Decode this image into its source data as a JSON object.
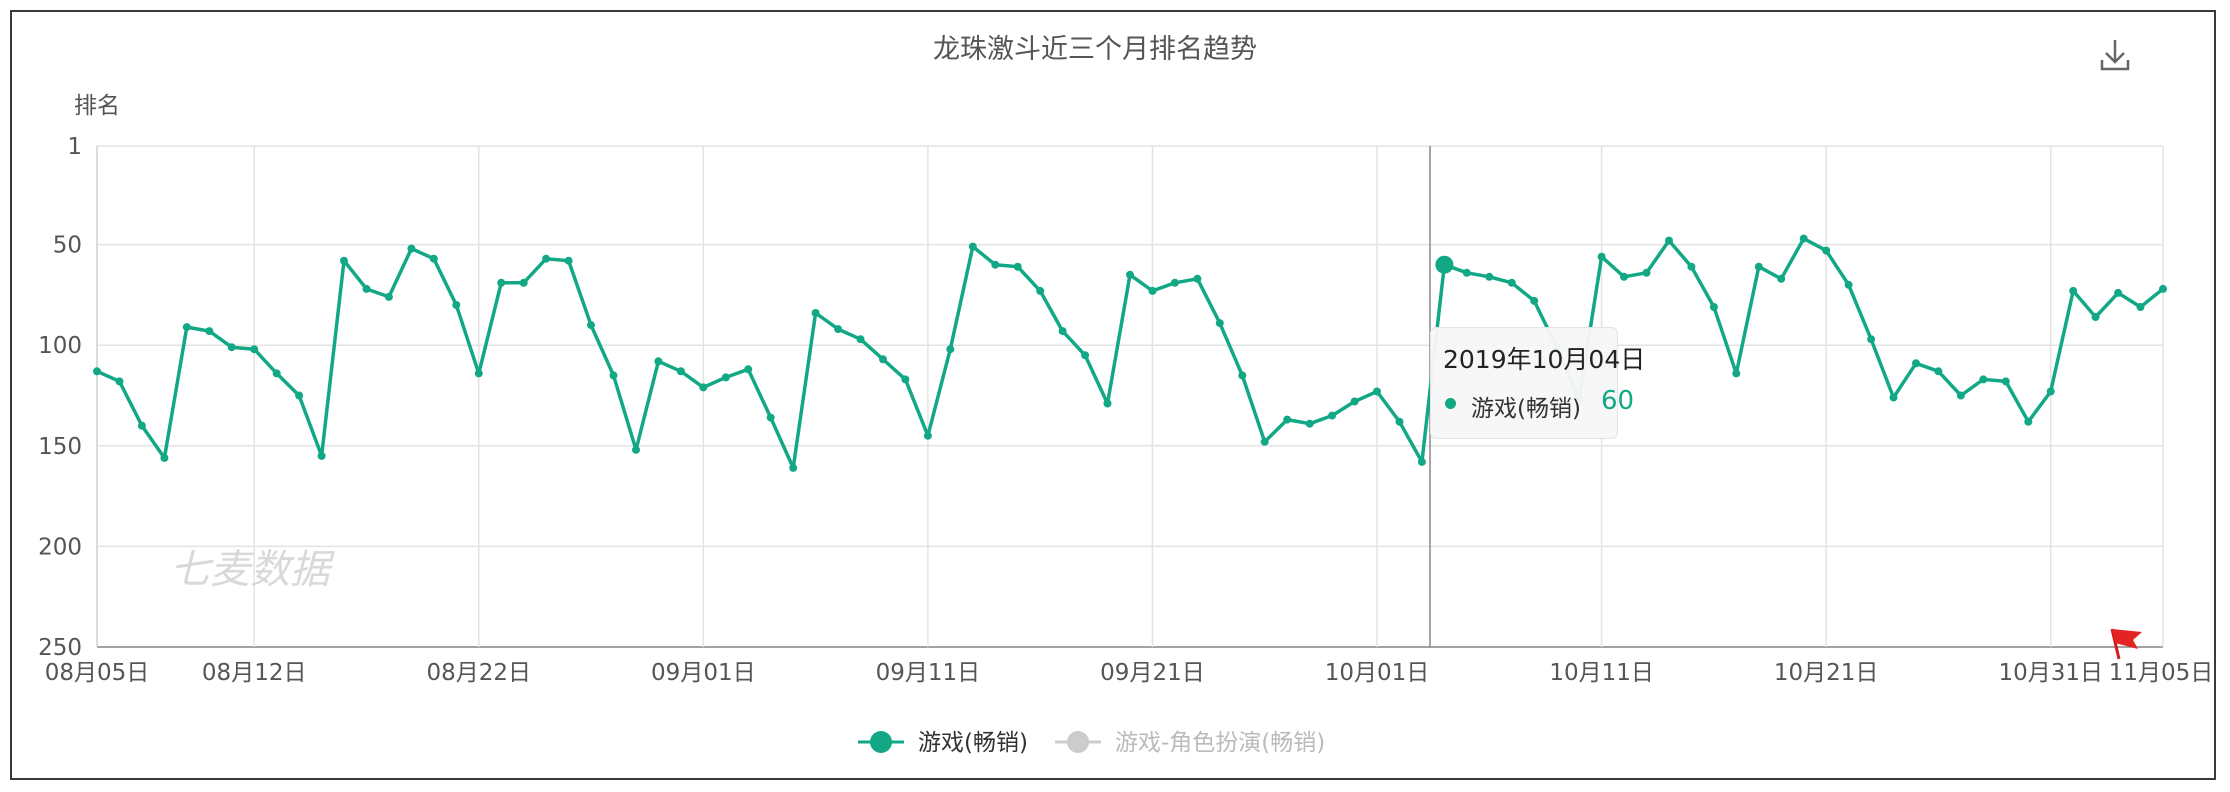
{
  "chart_data": {
    "type": "line",
    "title": "龙珠激斗近三个月排名趋势",
    "ylabel": "排名",
    "y_inverted": true,
    "ylim": [
      1,
      250
    ],
    "y_ticks": [
      "1",
      "50",
      "100",
      "150",
      "200",
      "250"
    ],
    "x_ticks": [
      "08月05日",
      "08月12日",
      "08月22日",
      "09月01日",
      "09月11日",
      "09月21日",
      "10月01日",
      "10月11日",
      "10月21日",
      "10月31日",
      "11月05日"
    ],
    "grid": true,
    "legend_position": "bottom",
    "watermark": "七麦数据",
    "series": [
      {
        "name": "游戏(畅销)",
        "color": "#12a886",
        "active": true,
        "start_date": "08月05日",
        "end_date": "11月05日",
        "values": [
          113,
          118,
          140,
          156,
          91,
          93,
          101,
          102,
          114,
          125,
          155,
          58,
          72,
          76,
          52,
          57,
          80,
          114,
          69,
          69,
          57,
          58,
          90,
          115,
          152,
          108,
          113,
          121,
          116,
          112,
          136,
          161,
          84,
          92,
          97,
          107,
          117,
          145,
          102,
          51,
          60,
          61,
          73,
          93,
          105,
          129,
          65,
          73,
          69,
          67,
          89,
          115,
          148,
          137,
          139,
          135,
          128,
          123,
          138,
          158,
          60,
          64,
          66,
          69,
          78,
          101,
          127,
          56,
          66,
          64,
          48,
          61,
          81,
          114,
          61,
          67,
          47,
          53,
          70,
          97,
          126,
          109,
          113,
          125,
          117,
          118,
          138,
          123,
          73,
          86,
          74,
          81,
          72
        ]
      },
      {
        "name": "游戏-角色扮演(畅销)",
        "color": "#cccccc",
        "active": false,
        "values": []
      }
    ],
    "tooltip": {
      "date": "2019年10月04日",
      "series": "游戏(畅销)",
      "value": "60"
    }
  },
  "toolbar": {
    "download_icon": "download-icon"
  }
}
